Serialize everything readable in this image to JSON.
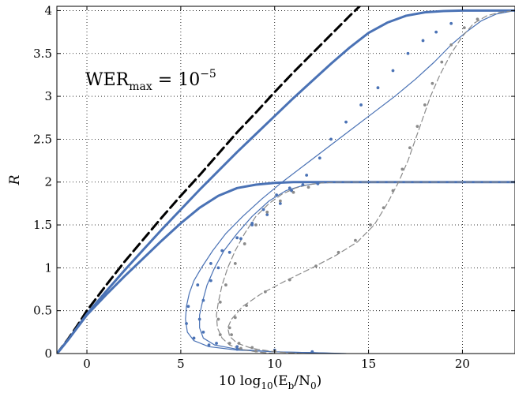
{
  "chart_data": {
    "type": "line",
    "title": "",
    "xlabel": "10 log₁₀(E_b/N₀)",
    "xlabel_parts": {
      "lead": "10 log",
      "sub": "10",
      "open": "(E",
      "sub2": "b",
      "mid": "/N",
      "sub3": "0",
      "close": ")"
    },
    "ylabel": "R",
    "xlim": [
      -1.6,
      22.8
    ],
    "ylim": [
      0,
      4.05
    ],
    "xticks": [
      0,
      5,
      10,
      15,
      20
    ],
    "xtick_labels": [
      "0",
      "5",
      "10",
      "15",
      "20"
    ],
    "yticks": [
      0,
      0.5,
      1,
      1.5,
      2,
      2.5,
      3,
      3.5,
      4
    ],
    "ytick_labels": [
      "0",
      "0.5",
      "1",
      "1.5",
      "2",
      "2.5",
      "3",
      "3.5",
      "4"
    ],
    "grid": true,
    "annotation": {
      "base": "WER",
      "sub": "max",
      "eq": " = 10",
      "sup": "−5"
    },
    "series": [
      {
        "style": "black-dashed-thick",
        "x": [
          -1.59,
          -1.0,
          -0.5,
          0.0,
          1.0,
          2.0,
          3.0,
          4.0,
          5.0,
          6.0,
          7.0,
          8.0,
          9.0,
          10.0,
          11.0,
          12.0,
          13.0,
          14.0,
          15.0,
          15.3
        ],
        "y": [
          0.0,
          0.17,
          0.33,
          0.5,
          0.79,
          1.07,
          1.33,
          1.59,
          1.84,
          2.08,
          2.33,
          2.58,
          2.81,
          3.05,
          3.28,
          3.5,
          3.72,
          3.94,
          4.15,
          4.22
        ]
      },
      {
        "style": "blue-thick",
        "x": [
          -1.59,
          -1.0,
          0.0,
          1.0,
          2.0,
          3.0,
          4.0,
          5.0,
          6.0,
          7.0,
          8.0,
          9.0,
          10.0,
          11.0,
          12.0,
          13.0,
          14.0,
          15.0,
          16.0,
          17.0,
          18.0,
          19.0,
          20.0,
          21.0,
          22.0,
          22.8
        ],
        "y": [
          0.0,
          0.16,
          0.46,
          0.72,
          0.97,
          1.21,
          1.45,
          1.68,
          1.91,
          2.13,
          2.35,
          2.56,
          2.77,
          2.98,
          3.18,
          3.38,
          3.57,
          3.74,
          3.86,
          3.94,
          3.98,
          3.995,
          4.0,
          4.0,
          4.0,
          4.0
        ]
      },
      {
        "style": "blue-thick",
        "x": [
          -1.59,
          -1.0,
          0.0,
          1.0,
          2.0,
          3.0,
          4.0,
          5.0,
          6.0,
          7.0,
          8.0,
          9.0,
          10.0,
          11.0,
          12.0,
          13.0,
          14.0,
          15.0,
          16.0,
          18.0,
          20.0,
          22.8
        ],
        "y": [
          0.0,
          0.16,
          0.45,
          0.68,
          0.9,
          1.11,
          1.32,
          1.52,
          1.7,
          1.84,
          1.93,
          1.97,
          1.99,
          2.0,
          2.0,
          2.0,
          2.0,
          2.0,
          2.0,
          2.0,
          2.0,
          2.0
        ]
      },
      {
        "style": "blue-thin",
        "x": [
          13.8,
          12.0,
          10.0,
          8.0,
          6.5,
          5.7,
          5.35,
          5.25,
          5.3,
          5.45,
          5.7,
          6.1,
          6.7,
          7.4,
          8.3,
          9.3,
          10.4,
          11.6,
          12.8,
          14.0,
          15.2,
          16.4,
          17.5,
          18.5,
          19.4,
          20.2,
          21.0,
          21.8,
          22.8
        ],
        "y": [
          0.0,
          0.01,
          0.02,
          0.04,
          0.08,
          0.15,
          0.25,
          0.4,
          0.55,
          0.7,
          0.85,
          1.0,
          1.2,
          1.4,
          1.6,
          1.8,
          2.0,
          2.2,
          2.4,
          2.6,
          2.8,
          3.0,
          3.2,
          3.4,
          3.6,
          3.75,
          3.88,
          3.96,
          4.0
        ]
      },
      {
        "style": "blue-thin",
        "x": [
          13.5,
          12.0,
          10.0,
          8.0,
          6.8,
          6.2,
          6.0,
          6.0,
          6.15,
          6.4,
          6.8,
          7.3,
          8.0,
          8.8,
          9.7,
          10.6,
          11.5,
          12.5,
          13.5,
          15.0,
          17.0,
          19.0,
          22.8
        ],
        "y": [
          0.0,
          0.01,
          0.02,
          0.05,
          0.1,
          0.18,
          0.3,
          0.45,
          0.6,
          0.8,
          1.0,
          1.2,
          1.4,
          1.6,
          1.78,
          1.9,
          1.96,
          1.99,
          2.0,
          2.0,
          2.0,
          2.0,
          2.0
        ]
      },
      {
        "style": "gray-dashed",
        "x": [
          10.0,
          9.0,
          8.2,
          7.6,
          7.2,
          6.95,
          6.9,
          7.0,
          7.2,
          7.5,
          7.9,
          8.4,
          9.0,
          9.7,
          10.4,
          11.1,
          11.8,
          12.5,
          13.5,
          15.0,
          17.0,
          22.8
        ],
        "y": [
          0.0,
          0.02,
          0.05,
          0.1,
          0.18,
          0.3,
          0.45,
          0.6,
          0.8,
          1.0,
          1.2,
          1.4,
          1.6,
          1.75,
          1.86,
          1.93,
          1.97,
          1.99,
          2.0,
          2.0,
          2.0,
          2.0
        ]
      },
      {
        "style": "gray-dashed",
        "x": [
          11.5,
          10.0,
          8.8,
          8.0,
          7.6,
          7.5,
          7.7,
          8.3,
          9.3,
          10.6,
          12.0,
          13.3,
          14.4,
          15.3,
          16.0,
          16.6,
          17.1,
          17.5,
          17.9,
          18.3,
          18.8,
          19.4,
          20.0,
          20.6,
          21.3,
          22.0,
          22.8
        ],
        "y": [
          0.0,
          0.02,
          0.06,
          0.12,
          0.2,
          0.3,
          0.4,
          0.55,
          0.7,
          0.85,
          1.0,
          1.15,
          1.3,
          1.5,
          1.75,
          2.0,
          2.25,
          2.5,
          2.75,
          3.0,
          3.25,
          3.5,
          3.7,
          3.85,
          3.94,
          3.98,
          4.0
        ]
      }
    ],
    "scatter": [
      {
        "color": "#4a72b5",
        "points": [
          [
            12.0,
            0.02
          ],
          [
            10.0,
            0.03
          ],
          [
            8.0,
            0.05
          ],
          [
            6.5,
            0.1
          ],
          [
            5.7,
            0.18
          ],
          [
            5.3,
            0.35
          ],
          [
            5.4,
            0.55
          ],
          [
            5.9,
            0.8
          ],
          [
            6.6,
            1.05
          ],
          [
            7.2,
            1.2
          ],
          [
            8.0,
            1.35
          ],
          [
            8.8,
            1.5
          ],
          [
            9.6,
            1.62
          ],
          [
            10.3,
            1.75
          ],
          [
            10.9,
            1.9
          ],
          [
            11.7,
            2.08
          ],
          [
            12.4,
            2.28
          ],
          [
            13.0,
            2.5
          ],
          [
            13.8,
            2.7
          ],
          [
            14.6,
            2.9
          ],
          [
            15.5,
            3.1
          ],
          [
            16.3,
            3.3
          ],
          [
            17.1,
            3.5
          ],
          [
            17.9,
            3.65
          ],
          [
            18.6,
            3.75
          ],
          [
            19.4,
            3.85
          ]
        ]
      },
      {
        "color": "#4a72b5",
        "points": [
          [
            12.0,
            0.02
          ],
          [
            10.0,
            0.04
          ],
          [
            8.0,
            0.08
          ],
          [
            6.9,
            0.12
          ],
          [
            6.2,
            0.25
          ],
          [
            6.0,
            0.4
          ],
          [
            6.2,
            0.62
          ],
          [
            6.6,
            0.85
          ],
          [
            7.0,
            1.0
          ],
          [
            7.6,
            1.18
          ],
          [
            8.2,
            1.34
          ],
          [
            8.8,
            1.52
          ],
          [
            9.4,
            1.68
          ],
          [
            10.1,
            1.85
          ],
          [
            10.8,
            1.93
          ],
          [
            11.5,
            1.97
          ],
          [
            12.3,
            1.98
          ]
        ]
      },
      {
        "color": "#8a8a8a",
        "points": [
          [
            9.0,
            0.03
          ],
          [
            8.2,
            0.06
          ],
          [
            7.6,
            0.12
          ],
          [
            7.1,
            0.22
          ],
          [
            7.0,
            0.4
          ],
          [
            7.1,
            0.6
          ],
          [
            7.4,
            0.8
          ],
          [
            7.9,
            1.05
          ],
          [
            8.4,
            1.28
          ],
          [
            9.0,
            1.5
          ],
          [
            9.6,
            1.65
          ],
          [
            10.3,
            1.78
          ],
          [
            11.0,
            1.88
          ],
          [
            11.8,
            1.94
          ]
        ]
      },
      {
        "color": "#8a8a8a",
        "points": [
          [
            10.0,
            0.03
          ],
          [
            8.8,
            0.07
          ],
          [
            8.1,
            0.12
          ],
          [
            7.7,
            0.22
          ],
          [
            7.6,
            0.3
          ],
          [
            7.9,
            0.42
          ],
          [
            8.5,
            0.56
          ],
          [
            9.5,
            0.72
          ],
          [
            10.8,
            0.86
          ],
          [
            12.2,
            1.02
          ],
          [
            13.4,
            1.18
          ],
          [
            14.3,
            1.32
          ],
          [
            15.1,
            1.5
          ],
          [
            15.8,
            1.7
          ],
          [
            16.3,
            1.9
          ],
          [
            16.8,
            2.15
          ],
          [
            17.2,
            2.4
          ],
          [
            17.6,
            2.65
          ],
          [
            18.0,
            2.9
          ],
          [
            18.4,
            3.15
          ],
          [
            18.9,
            3.4
          ],
          [
            19.4,
            3.6
          ],
          [
            20.1,
            3.8
          ],
          [
            20.8,
            3.9
          ]
        ]
      }
    ]
  }
}
